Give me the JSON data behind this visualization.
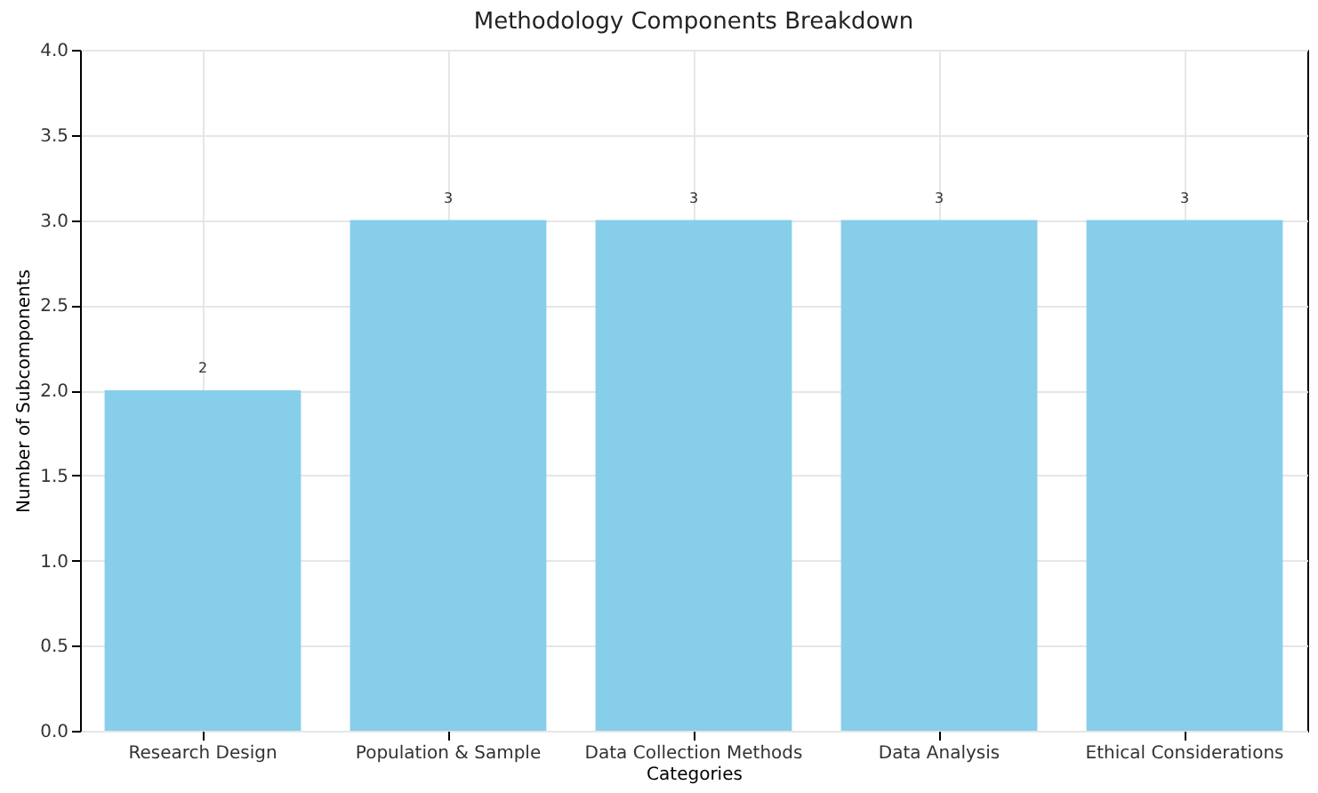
{
  "chart_data": {
    "type": "bar",
    "title": "Methodology Components Breakdown",
    "xlabel": "Categories",
    "ylabel": "Number of Subcomponents",
    "categories": [
      "Research Design",
      "Population & Sample",
      "Data Collection Methods",
      "Data Analysis",
      "Ethical Considerations"
    ],
    "values": [
      2,
      3,
      3,
      3,
      3
    ],
    "color": "#87ceeb",
    "ylim": [
      0,
      4
    ],
    "yticks": [
      {
        "value": 0,
        "label": "0.0"
      },
      {
        "value": 0.5,
        "label": "0.5"
      },
      {
        "value": 1,
        "label": "1.0"
      },
      {
        "value": 1.5,
        "label": "1.5"
      },
      {
        "value": 2,
        "label": "2.0"
      },
      {
        "value": 2.5,
        "label": "2.5"
      },
      {
        "value": 3,
        "label": "3.0"
      },
      {
        "value": 3.5,
        "label": "3.5"
      },
      {
        "value": 4,
        "label": "4.0"
      }
    ],
    "grid": true,
    "data_labels": true
  }
}
